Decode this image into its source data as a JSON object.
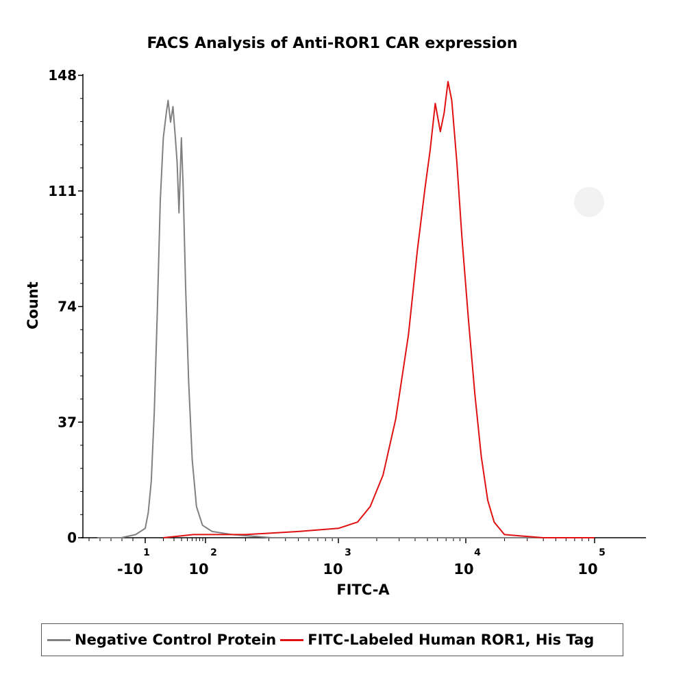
{
  "chart_data": {
    "type": "line",
    "title": "FACS Analysis of Anti-ROR1 CAR expression",
    "xlabel": "FITC-A",
    "ylabel": "Count",
    "ylim": [
      0,
      148
    ],
    "yticks": [
      "0",
      "37",
      "74",
      "111",
      "148"
    ],
    "xscale": "log",
    "xtick_labels": [
      {
        "base": "-10",
        "exp": "1"
      },
      {
        "base": "10",
        "exp": "2"
      },
      {
        "base": "10",
        "exp": "3"
      },
      {
        "base": "10",
        "exp": "4"
      },
      {
        "base": "10",
        "exp": "5"
      }
    ],
    "series": [
      {
        "name": "Negative Control Protein",
        "color": "#808080",
        "points": [
          [
            0.5,
            0
          ],
          [
            0.75,
            0
          ],
          [
            0.9,
            1
          ],
          [
            1.0,
            3
          ],
          [
            1.05,
            8
          ],
          [
            1.1,
            18
          ],
          [
            1.15,
            40
          ],
          [
            1.2,
            72
          ],
          [
            1.25,
            108
          ],
          [
            1.3,
            128
          ],
          [
            1.35,
            136
          ],
          [
            1.38,
            140
          ],
          [
            1.42,
            133
          ],
          [
            1.46,
            138
          ],
          [
            1.5,
            128
          ],
          [
            1.53,
            120
          ],
          [
            1.56,
            104
          ],
          [
            1.6,
            128
          ],
          [
            1.63,
            112
          ],
          [
            1.67,
            80
          ],
          [
            1.72,
            50
          ],
          [
            1.78,
            25
          ],
          [
            1.85,
            10
          ],
          [
            1.95,
            4
          ],
          [
            2.05,
            2
          ],
          [
            2.2,
            1
          ],
          [
            2.5,
            0
          ],
          [
            5.0,
            0
          ]
        ]
      },
      {
        "name": "FITC-Labeled Human ROR1, His Tag",
        "color": "#e01010",
        "points": [
          [
            1.3,
            0
          ],
          [
            1.8,
            1
          ],
          [
            2.3,
            1
          ],
          [
            2.7,
            2
          ],
          [
            3.0,
            3
          ],
          [
            3.15,
            5
          ],
          [
            3.25,
            10
          ],
          [
            3.35,
            20
          ],
          [
            3.45,
            38
          ],
          [
            3.55,
            65
          ],
          [
            3.62,
            92
          ],
          [
            3.68,
            112
          ],
          [
            3.72,
            124
          ],
          [
            3.76,
            139
          ],
          [
            3.8,
            130
          ],
          [
            3.83,
            136
          ],
          [
            3.86,
            146
          ],
          [
            3.89,
            140
          ],
          [
            3.93,
            120
          ],
          [
            3.97,
            96
          ],
          [
            4.02,
            70
          ],
          [
            4.07,
            46
          ],
          [
            4.12,
            26
          ],
          [
            4.17,
            12
          ],
          [
            4.22,
            5
          ],
          [
            4.3,
            1
          ],
          [
            4.6,
            0
          ],
          [
            5.0,
            0
          ]
        ]
      }
    ]
  },
  "legend": {
    "items": [
      {
        "label": "Negative Control Protein",
        "color": "#808080"
      },
      {
        "label": "FITC-Labeled Human ROR1, His Tag",
        "color": "#e01010"
      }
    ]
  }
}
